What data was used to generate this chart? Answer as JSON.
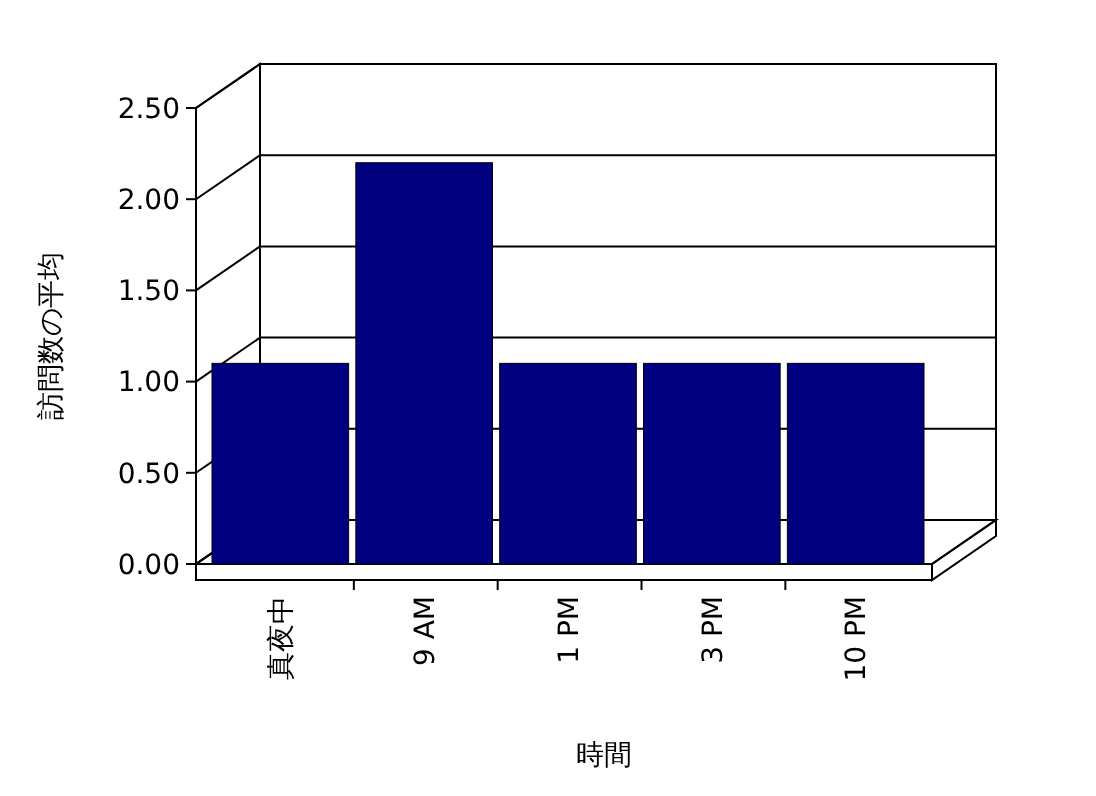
{
  "chart_data": {
    "type": "bar",
    "xlabel": "時間",
    "ylabel": "訪問数の平均",
    "categories": [
      "真夜中",
      "9 AM",
      "1 PM",
      "3 PM",
      "10 PM"
    ],
    "values": [
      1.1,
      2.2,
      1.1,
      1.1,
      1.1
    ],
    "color": "#000080",
    "ylim": [
      0,
      2.5
    ],
    "yticks": [
      {
        "value": 0,
        "label": "0.00"
      },
      {
        "value": 0.5,
        "label": "0.50"
      },
      {
        "value": 1,
        "label": "1.00"
      },
      {
        "value": 1.5,
        "label": "1.50"
      },
      {
        "value": 2,
        "label": "2.00"
      },
      {
        "value": 2.5,
        "label": "2.50"
      }
    ],
    "grid": "y"
  }
}
